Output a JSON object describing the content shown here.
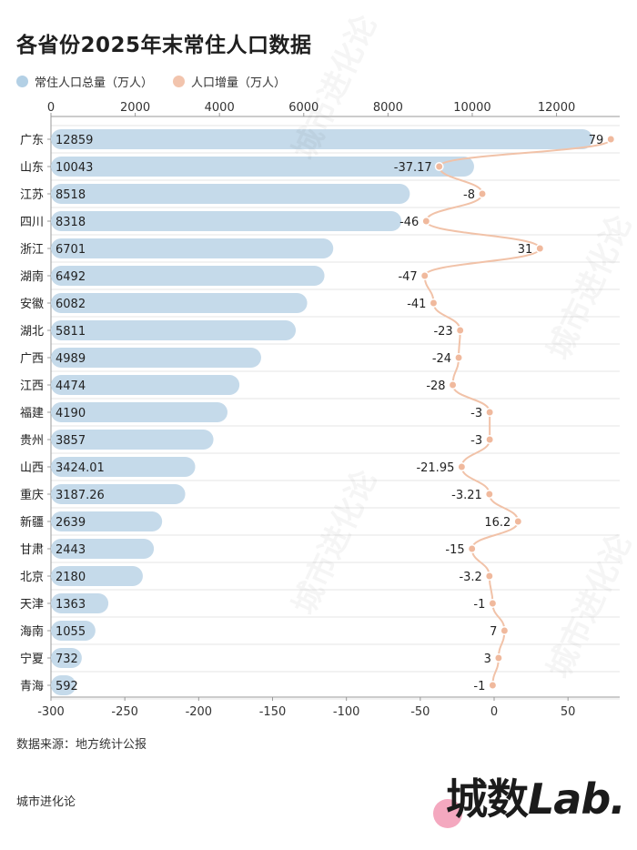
{
  "title": "各省份2025年末常住人口数据",
  "legend": [
    {
      "label": "常住人口总量（万人）",
      "color": "#b3d0e5"
    },
    {
      "label": "人口增量（万人）",
      "color": "#f2c4ad"
    }
  ],
  "source": "数据来源：地方统计公报",
  "footer": "城市进化论",
  "brand": {
    "part1": "城数",
    "part2": "Lab."
  },
  "watermark": "城市进化论",
  "colors": {
    "bar": "#c5daea",
    "line": "#f1c2a8",
    "point": "#f0b99d",
    "grid": "#e6e6e6"
  },
  "chart_data": {
    "type": "bar+line",
    "title": "各省份2025年末常住人口数据",
    "categories": [
      "广东",
      "山东",
      "江苏",
      "四川",
      "浙江",
      "湖南",
      "安徽",
      "湖北",
      "广西",
      "江西",
      "福建",
      "贵州",
      "山西",
      "重庆",
      "新疆",
      "甘肃",
      "北京",
      "天津",
      "海南",
      "宁夏",
      "青海"
    ],
    "series": [
      {
        "name": "常住人口总量（万人）",
        "axis": "top",
        "type": "bar",
        "labels": [
          "12859",
          "10043",
          "8518",
          "8318",
          "6701",
          "6492",
          "6082",
          "5811",
          "4989",
          "4474",
          "4190",
          "3857",
          "3424.01",
          "3187.26",
          "2639",
          "2443",
          "2180",
          "1363",
          "1055",
          "732",
          "592"
        ],
        "values": [
          12859,
          10043,
          8518,
          8318,
          6701,
          6492,
          6082,
          5811,
          4989,
          4474,
          4190,
          3857,
          3424.01,
          3187.26,
          2639,
          2443,
          2180,
          1363,
          1055,
          732,
          592
        ]
      },
      {
        "name": "人口增量（万人）",
        "axis": "bottom",
        "type": "line",
        "labels": [
          "79",
          "-37.17",
          "-8",
          "-46",
          "31",
          "-47",
          "-41",
          "-23",
          "-24",
          "-28",
          "-3",
          "-3",
          "-21.95",
          "-3.21",
          "16.2",
          "-15",
          "-3.2",
          "-1",
          "7",
          "3",
          "-1"
        ],
        "values": [
          79,
          -37.17,
          -8,
          -46,
          31,
          -47,
          -41,
          -23,
          -24,
          -28,
          -3,
          -3,
          -21.95,
          -3.21,
          16.2,
          -15,
          -3.2,
          -1,
          7,
          3,
          -1
        ]
      }
    ],
    "top_axis": {
      "range": [
        0,
        13500
      ],
      "ticks": [
        "0",
        "2000",
        "4000",
        "6000",
        "8000",
        "10000",
        "12000"
      ],
      "tick_values": [
        0,
        2000,
        4000,
        6000,
        8000,
        10000,
        12000
      ]
    },
    "bottom_axis": {
      "range": [
        -300,
        85
      ],
      "ticks": [
        "-300",
        "-250",
        "-200",
        "-150",
        "-100",
        "-50",
        "0",
        "50"
      ],
      "tick_values": [
        -300,
        -250,
        -200,
        -150,
        -100,
        -50,
        0,
        50
      ]
    },
    "grid": true,
    "legend_position": "top-left"
  }
}
